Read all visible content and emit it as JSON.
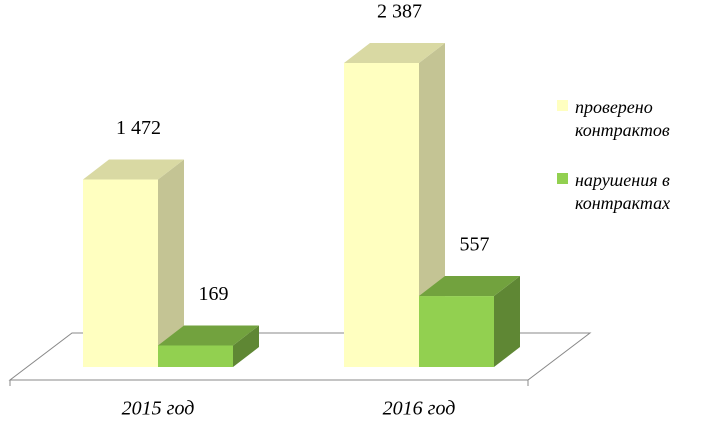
{
  "chart_data": {
    "type": "bar3d",
    "categories": [
      "2015 год",
      "2016 год"
    ],
    "series": [
      {
        "name": "проверено контрактов",
        "color": "#ffffc0",
        "values": [
          1472,
          2387
        ],
        "value_labels": [
          "1 472",
          "2 387"
        ]
      },
      {
        "name": "нарушения в контрактах",
        "color": "#92d050",
        "values": [
          169,
          557
        ],
        "value_labels": [
          "169",
          "557"
        ]
      }
    ]
  }
}
